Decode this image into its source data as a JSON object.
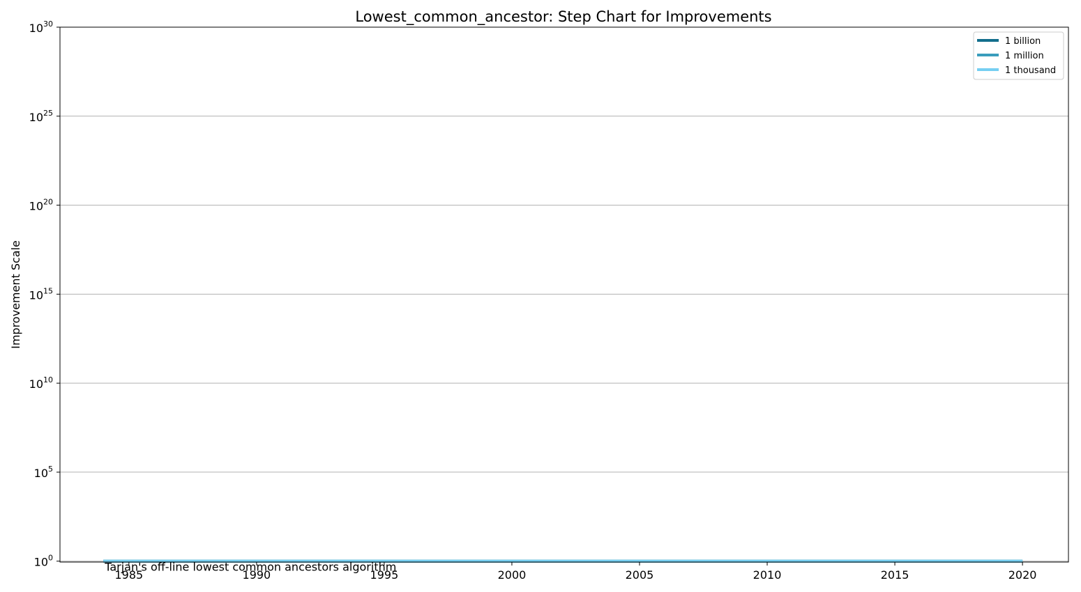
{
  "chart_data": {
    "type": "line",
    "step": true,
    "title": "Lowest_common_ancestor: Step Chart for Improvements",
    "xlabel": "",
    "ylabel": "Improvement Scale",
    "yscale": "log",
    "xlim": [
      1982.3,
      2021.8
    ],
    "ylim_exponent": [
      -0.05,
      30
    ],
    "x_ticks": [
      "1985",
      "1990",
      "1995",
      "2000",
      "2005",
      "2010",
      "2015",
      "2020"
    ],
    "y_ticks": [
      {
        "base": "10",
        "exp": "0",
        "value": 0
      },
      {
        "base": "10",
        "exp": "5",
        "value": 5
      },
      {
        "base": "10",
        "exp": "10",
        "value": 10
      },
      {
        "base": "10",
        "exp": "15",
        "value": 15
      },
      {
        "base": "10",
        "exp": "20",
        "value": 20
      },
      {
        "base": "10",
        "exp": "25",
        "value": 25
      },
      {
        "base": "10",
        "exp": "30",
        "value": 30
      }
    ],
    "grid": "horizontal",
    "legend_position": "top-right",
    "series": [
      {
        "name": "1 billion",
        "color": "#136e8c",
        "x": [
          1984,
          2020
        ],
        "y": [
          1,
          1
        ]
      },
      {
        "name": "1 million",
        "color": "#3a9dbc",
        "x": [
          1984,
          2020
        ],
        "y": [
          1,
          1
        ]
      },
      {
        "name": "1 thousand",
        "color": "#76cff2",
        "x": [
          1984,
          2020
        ],
        "y": [
          1,
          1
        ]
      }
    ],
    "annotations": [
      {
        "text": "Tarjan's off-line lowest common ancestors algorithm",
        "x": 1984,
        "y": 1
      }
    ]
  }
}
